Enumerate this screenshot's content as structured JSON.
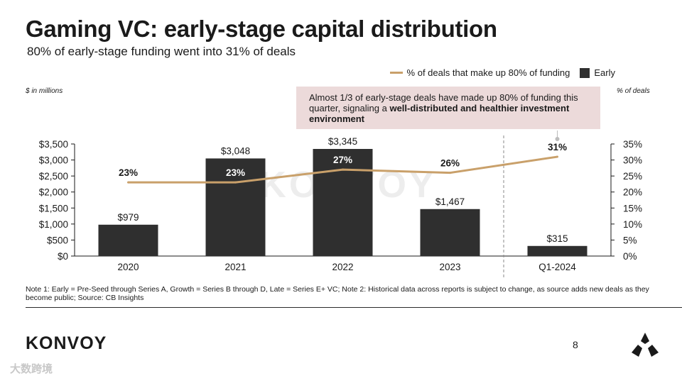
{
  "header": {
    "title": "Gaming VC: early-stage capital distribution",
    "subtitle": "80% of early-stage funding went into 31% of deals"
  },
  "legend": {
    "line_label": "% of deals that make up 80% of funding",
    "bar_label": "Early"
  },
  "axis_notes": {
    "left": "$ in millions",
    "right": "% of deals"
  },
  "callout": {
    "text_plain": "Almost 1/3 of early-stage deals have made up 80% of funding this quarter, signaling a ",
    "text_bold": "well-distributed and healthier investment environment"
  },
  "footnote": "Note 1: Early = Pre-Seed through Series A, Growth = Series B through D, Late = Series E+ VC; Note 2: Historical data across reports is subject to change, as source adds new deals as they become public; Source: CB Insights",
  "footer": {
    "brand": "KONVOY",
    "page_number": "8",
    "watermark": "大数跨境"
  },
  "colors": {
    "bar": "#2f2f2f",
    "line": "#c9a06a",
    "callout_bg": "#ecdada"
  },
  "chart_data": {
    "type": "bar",
    "categories": [
      "2020",
      "2021",
      "2022",
      "2023",
      "Q1-2024"
    ],
    "series": [
      {
        "name": "Early",
        "type": "bar",
        "values": [
          979,
          3048,
          3345,
          1467,
          315
        ],
        "labels": [
          "$979",
          "$3,048",
          "$3,345",
          "$1,467",
          "$315"
        ]
      },
      {
        "name": "% of deals that make up 80% of funding",
        "type": "line",
        "axis": "right",
        "values": [
          23,
          23,
          27,
          26,
          31
        ],
        "labels": [
          "23%",
          "23%",
          "27%",
          "26%",
          "31%"
        ]
      }
    ],
    "ylim": [
      0,
      3500
    ],
    "y_ticks": [
      "$0",
      "$500",
      "$1,000",
      "$1,500",
      "$2,000",
      "$2,500",
      "$3,000",
      "$3,500"
    ],
    "y2lim": [
      0,
      35
    ],
    "y2_ticks": [
      "0%",
      "5%",
      "10%",
      "15%",
      "20%",
      "25%",
      "30%",
      "35%"
    ],
    "watermark": "KONVOY"
  }
}
